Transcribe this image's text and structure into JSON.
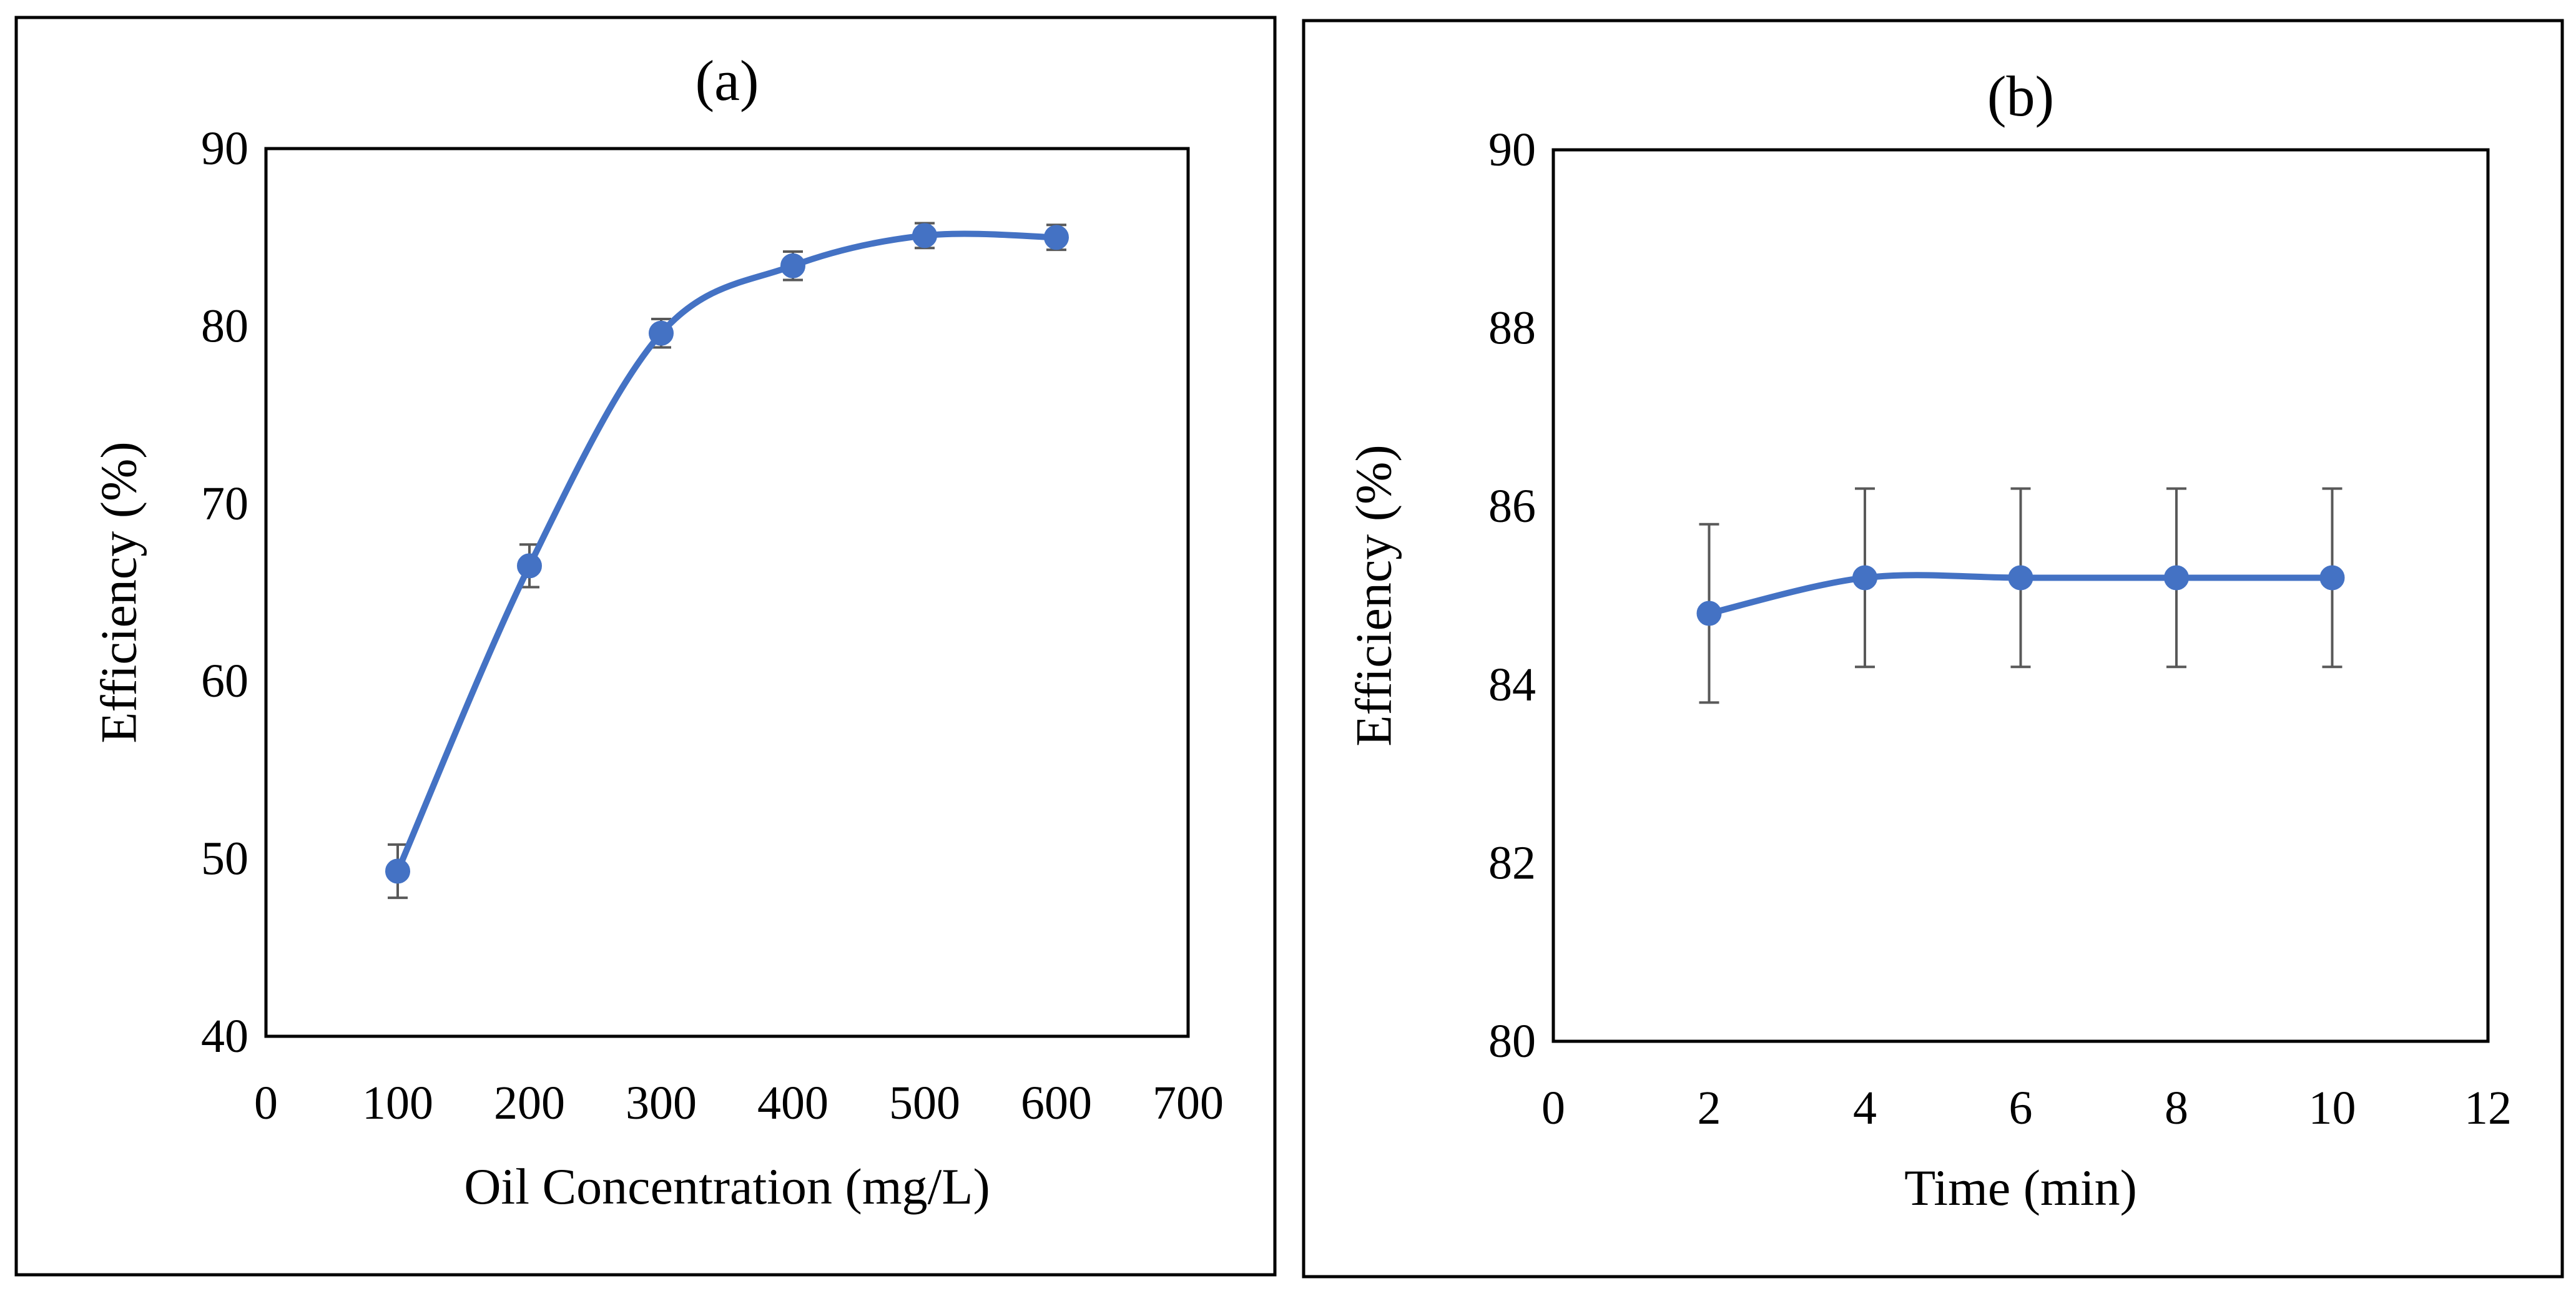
{
  "chart_data": [
    {
      "type": "line",
      "title": "(a)",
      "xlabel": "Oil Concentration (mg/L)",
      "ylabel": "Efficiency (%)",
      "xlim": [
        0,
        700
      ],
      "ylim": [
        40,
        90
      ],
      "xticks": [
        0,
        100,
        200,
        300,
        400,
        500,
        600,
        700
      ],
      "yticks": [
        40,
        50,
        60,
        70,
        80,
        90
      ],
      "grid": false,
      "smooth": true,
      "series": [
        {
          "name": "Efficiency",
          "color": "#4472C4",
          "x": [
            100,
            200,
            300,
            400,
            500,
            600
          ],
          "y": [
            49.3,
            66.5,
            79.6,
            83.4,
            85.1,
            85.0
          ],
          "error": [
            1.5,
            1.2,
            0.8,
            0.8,
            0.7,
            0.7
          ]
        }
      ]
    },
    {
      "type": "line",
      "title": "(b)",
      "xlabel": "Time (min)",
      "ylabel": "Efficiency (%)",
      "xlim": [
        0,
        12
      ],
      "ylim": [
        80,
        90
      ],
      "xticks": [
        0,
        2,
        4,
        6,
        8,
        10,
        12
      ],
      "yticks": [
        80,
        82,
        84,
        86,
        88,
        90
      ],
      "grid": false,
      "smooth": true,
      "series": [
        {
          "name": "Efficiency",
          "color": "#4472C4",
          "x": [
            2,
            4,
            6,
            8,
            10
          ],
          "y": [
            84.8,
            85.2,
            85.2,
            85.2,
            85.2
          ],
          "error": [
            1.0,
            1.0,
            1.0,
            1.0,
            1.0
          ]
        }
      ]
    }
  ]
}
